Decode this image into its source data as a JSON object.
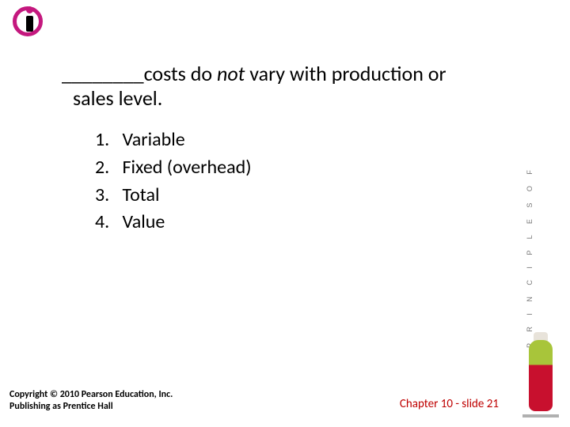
{
  "question": {
    "blank": "________",
    "line1_rest": "costs do ",
    "not_word": "not",
    "line1_tail": " vary with production or",
    "line2": "sales level."
  },
  "answers": [
    {
      "num": "1.",
      "text": "Variable"
    },
    {
      "num": "2.",
      "text": "Fixed (overhead)"
    },
    {
      "num": "3.",
      "text": "Total"
    },
    {
      "num": "4.",
      "text": "Value"
    }
  ],
  "footer": {
    "copyright_line1": "Copyright © 2010 Pearson Education, Inc.",
    "copyright_line2": "Publishing as Prentice Hall",
    "chapter": "Chapter 10 - slide 21"
  },
  "book_spine": "P R I N C I P L E S  O F",
  "colors": {
    "brand_pink": "#c4187e",
    "chapter_red": "#bf0000",
    "bottle_green": "#a8c53a",
    "bottle_red": "#c8102e"
  }
}
